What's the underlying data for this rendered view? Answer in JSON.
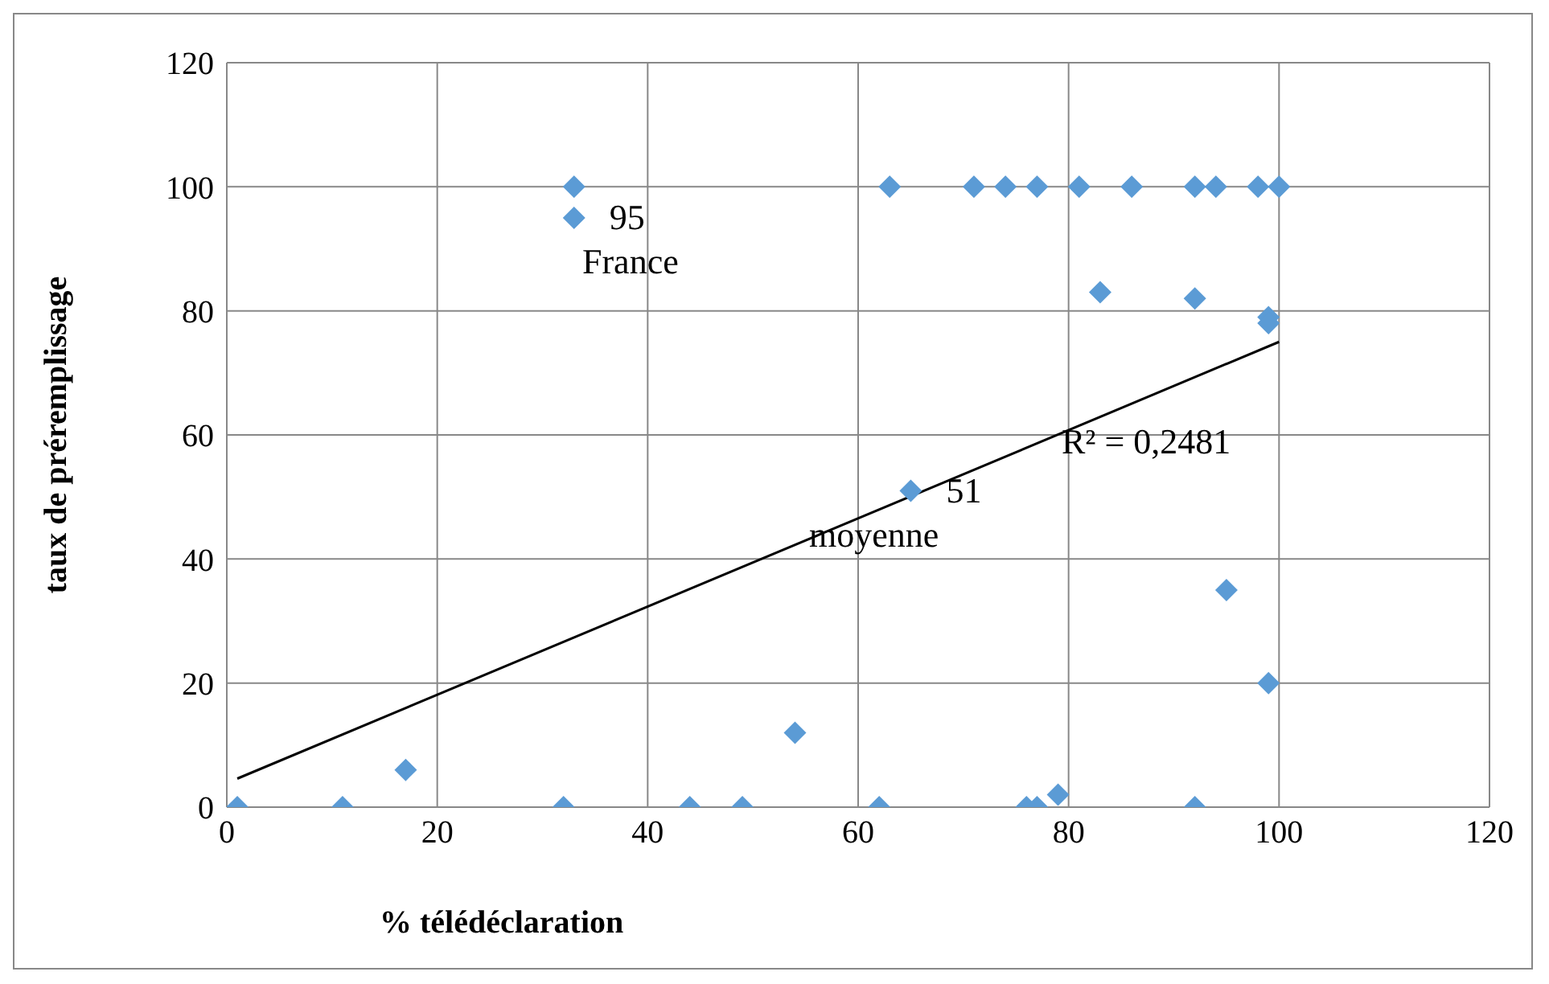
{
  "chart_data": {
    "type": "scatter",
    "xlabel": "% télédéclaration",
    "ylabel": "taux de préremplissage",
    "xlim": [
      0,
      120
    ],
    "xticks": [
      0,
      20,
      40,
      60,
      80,
      100,
      120
    ],
    "ylim": [
      0,
      120
    ],
    "yticks": [
      0,
      20,
      40,
      60,
      80,
      100,
      120
    ],
    "grid": true,
    "series": [
      {
        "marker": "diamond",
        "color": "#5b9bd5",
        "value_labels": [
          null,
          null,
          null,
          null,
          null,
          "95",
          null,
          null,
          null,
          null,
          null,
          "51",
          null,
          null,
          null,
          null,
          null,
          null,
          null,
          null,
          null,
          null,
          null,
          null,
          null,
          null,
          null,
          null,
          null,
          null,
          null
        ],
        "x": [
          1,
          11,
          17,
          32,
          33,
          33,
          44,
          49,
          54,
          62,
          63,
          65,
          71,
          74,
          76,
          77,
          77,
          79,
          81,
          83,
          86,
          92,
          92,
          92,
          94,
          95,
          98,
          99,
          99,
          99,
          100
        ],
        "values": [
          0,
          0,
          6,
          0,
          100,
          95,
          0,
          0,
          12,
          0,
          100,
          51,
          100,
          100,
          0,
          100,
          0,
          2,
          100,
          83,
          100,
          100,
          82,
          0,
          100,
          35,
          100,
          20,
          79,
          78,
          100
        ]
      },
      {
        "type": "line",
        "color": "#000000",
        "x": [
          1,
          100
        ],
        "values": [
          4.6,
          75
        ]
      }
    ],
    "annotations": [
      "France",
      "moyenne",
      "R² = 0,2481"
    ]
  }
}
